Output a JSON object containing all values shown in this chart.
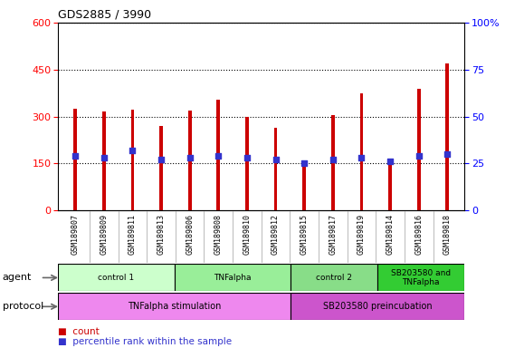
{
  "title": "GDS2885 / 3990",
  "samples": [
    "GSM189807",
    "GSM189809",
    "GSM189811",
    "GSM189813",
    "GSM189806",
    "GSM189808",
    "GSM189810",
    "GSM189812",
    "GSM189815",
    "GSM189817",
    "GSM189819",
    "GSM189814",
    "GSM189816",
    "GSM189818"
  ],
  "counts": [
    325,
    315,
    322,
    270,
    320,
    355,
    298,
    265,
    152,
    305,
    375,
    150,
    390,
    470
  ],
  "percentiles_pct": [
    29,
    28,
    32,
    27,
    28,
    29,
    28,
    27,
    25,
    27,
    28,
    26,
    29,
    30
  ],
  "ylim_left": [
    0,
    600
  ],
  "ylim_right": [
    0,
    100
  ],
  "yticks_left": [
    0,
    150,
    300,
    450,
    600
  ],
  "yticks_right": [
    0,
    25,
    50,
    75,
    100
  ],
  "bar_color": "#cc0000",
  "dot_color": "#3333cc",
  "bar_width": 0.12,
  "agent_groups": [
    {
      "label": "control 1",
      "start": 0,
      "end": 3,
      "color": "#ccffcc"
    },
    {
      "label": "TNFalpha",
      "start": 4,
      "end": 7,
      "color": "#99ee99"
    },
    {
      "label": "control 2",
      "start": 8,
      "end": 10,
      "color": "#88dd88"
    },
    {
      "label": "SB203580 and\nTNFalpha",
      "start": 11,
      "end": 13,
      "color": "#33cc33"
    }
  ],
  "protocol_groups": [
    {
      "label": "TNFalpha stimulation",
      "start": 0,
      "end": 7,
      "color": "#ee88ee"
    },
    {
      "label": "SB203580 preincubation",
      "start": 8,
      "end": 13,
      "color": "#cc55cc"
    }
  ],
  "legend_count_color": "#cc0000",
  "legend_dot_color": "#3333cc",
  "bg_color": "#ffffff",
  "tick_label_bg": "#cccccc",
  "agent_label": "agent",
  "protocol_label": "protocol",
  "grid_color": "#000000",
  "grid_linestyle": "dotted",
  "grid_linewidth": 0.8
}
